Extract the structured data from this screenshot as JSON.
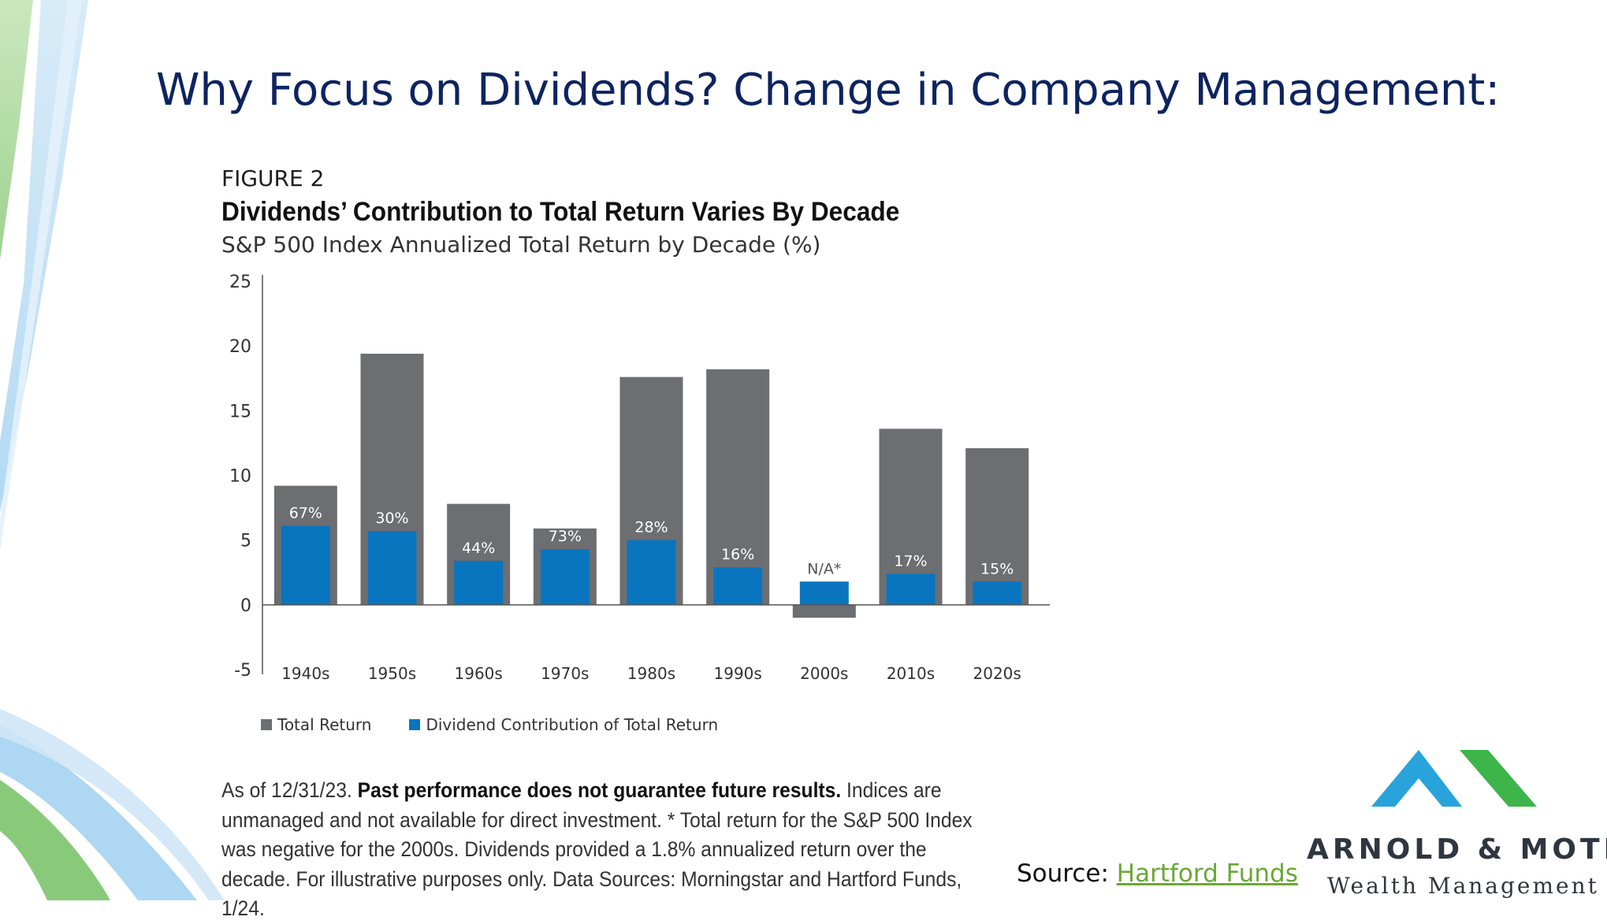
{
  "slide": {
    "title": "Why Focus on Dividends? Change in Company Management:"
  },
  "figure": {
    "label": "FIGURE 2",
    "title": "Dividends’ Contribution to Total Return Varies By Decade",
    "subtitle": "S&P 500 Index Annualized Total Return by Decade (%)"
  },
  "chart_data": {
    "type": "bar",
    "categories": [
      "1940s",
      "1950s",
      "1960s",
      "1970s",
      "1980s",
      "1990s",
      "2000s",
      "2010s",
      "2020s"
    ],
    "series": [
      {
        "name": "Total Return",
        "color": "#6d6e71",
        "values": [
          9.2,
          19.4,
          7.8,
          5.9,
          17.6,
          18.2,
          -1.0,
          13.6,
          12.1
        ]
      },
      {
        "name": "Dividend Contribution of Total Return",
        "color": "#0a75bf",
        "values": [
          6.1,
          5.7,
          3.4,
          4.3,
          5.0,
          2.9,
          1.8,
          2.4,
          1.8
        ]
      }
    ],
    "data_labels": [
      "67%",
      "30%",
      "44%",
      "73%",
      "28%",
      "16%",
      "N/A*",
      "17%",
      "15%"
    ],
    "y_ticks": [
      25,
      20,
      15,
      10,
      5,
      0,
      -5
    ],
    "ylim": [
      -5,
      25
    ],
    "xlabel": "",
    "ylabel": "",
    "grid": false,
    "legend_position": "bottom-left"
  },
  "legend": {
    "items": [
      {
        "label": "Total Return",
        "color": "#6d6e71"
      },
      {
        "label": "Dividend Contribution of Total Return",
        "color": "#0a75bf"
      }
    ]
  },
  "footnote": {
    "lead": "As of 12/31/23. ",
    "bold": "Past performance does not guarantee future results.",
    "rest": " Indices are unmanaged and not available for direct investment. * Total return for the S&P 500 Index was negative for the 2000s. Dividends provided a 1.8% annualized return over the decade. For illustrative purposes only. Data Sources: Morningstar and Hartford Funds, 1/24."
  },
  "source": {
    "prefix": "Source: ",
    "link_text": "Hartford Funds"
  },
  "brand": {
    "name": "ARNOLD & MOTE",
    "subtitle": "Wealth Management",
    "colors": {
      "blue": "#29a3dc",
      "green": "#3db54a",
      "text": "#2f3640"
    }
  },
  "colors": {
    "title": "#0d2460",
    "deco_blue": "#8ec6ea",
    "deco_green": "#8cc97a",
    "link": "#6aa835"
  }
}
